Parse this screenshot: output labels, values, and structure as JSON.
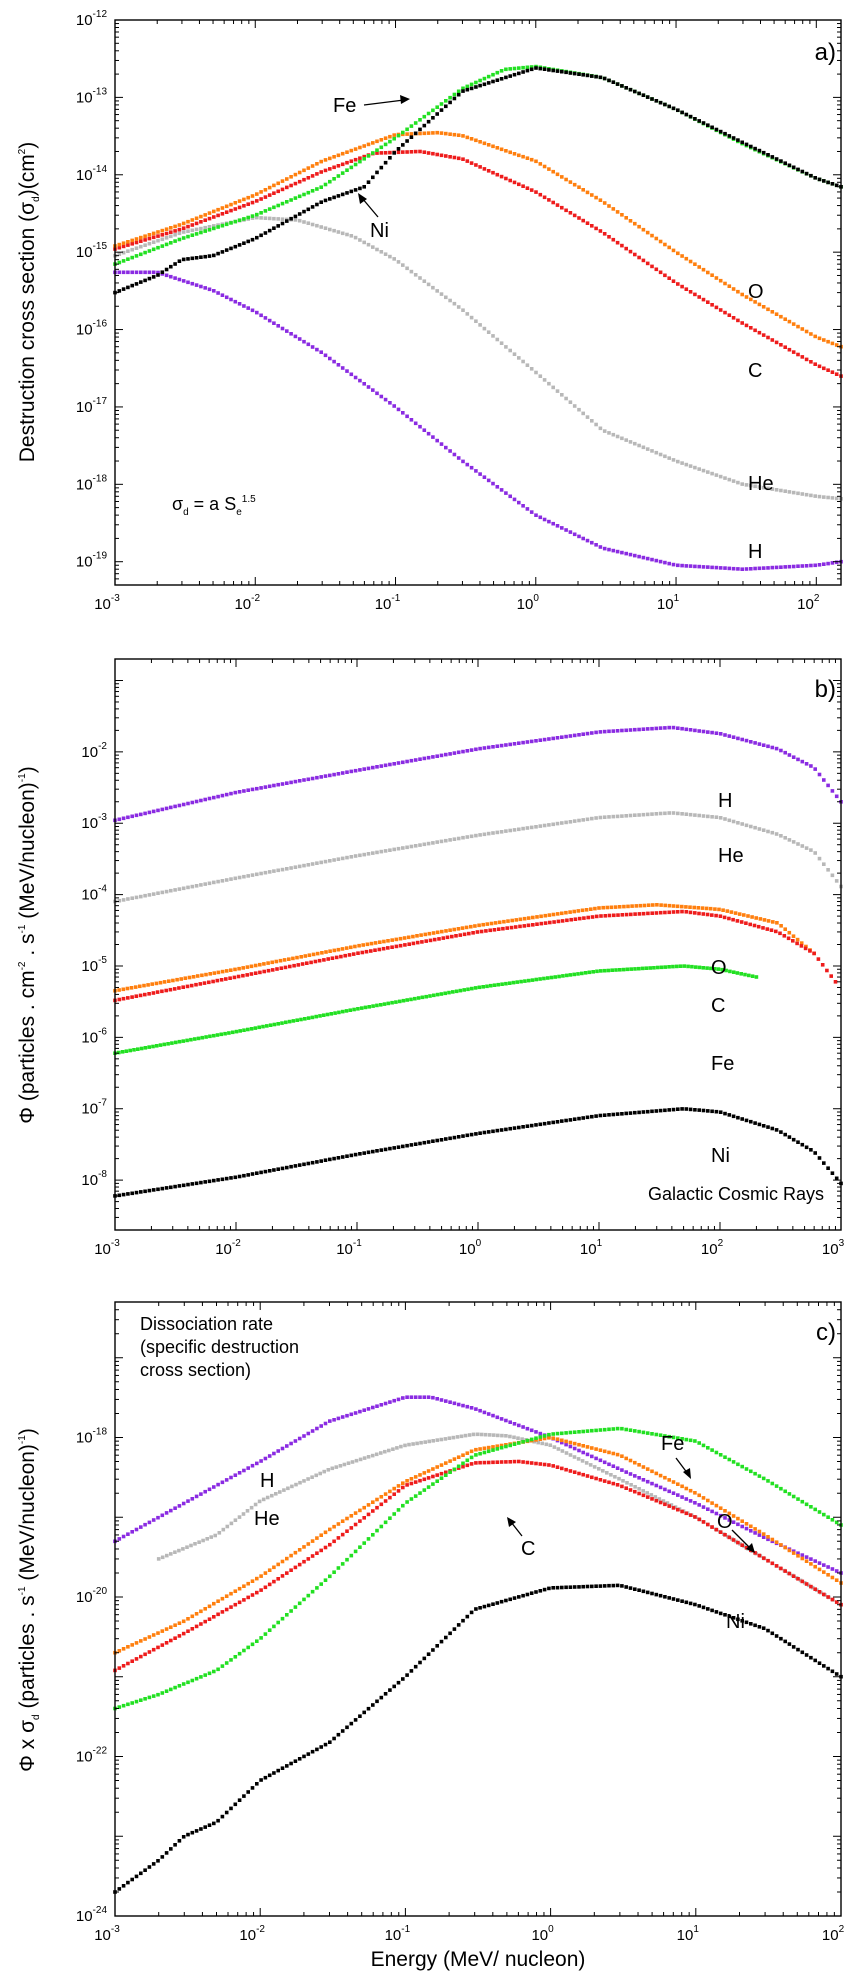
{
  "chart_data": [
    {
      "type": "scatter",
      "panel": "a)",
      "ylabel": "Destruction cross section (σd)(cm²)",
      "ylabel_parts": {
        "pre": "Destruction cross section (σ",
        "sub": "d",
        "mid": ")(cm",
        "sup": "2",
        "post": ")"
      },
      "xlim": [
        0.001,
        150
      ],
      "ylim": [
        5e-20,
        1e-12
      ],
      "x_ticks": [
        {
          "base": "10",
          "exp": "-3"
        },
        {
          "base": "10",
          "exp": "-2"
        },
        {
          "base": "10",
          "exp": "-1"
        },
        {
          "base": "10",
          "exp": "0"
        },
        {
          "base": "10",
          "exp": "1"
        },
        {
          "base": "10",
          "exp": "2"
        }
      ],
      "y_ticks": [
        {
          "base": "10",
          "exp": "-19"
        },
        {
          "base": "10",
          "exp": "-18"
        },
        {
          "base": "10",
          "exp": "-17"
        },
        {
          "base": "10",
          "exp": "-16"
        },
        {
          "base": "10",
          "exp": "-15"
        },
        {
          "base": "10",
          "exp": "-14"
        },
        {
          "base": "10",
          "exp": "-13"
        },
        {
          "base": "10",
          "exp": "-12"
        }
      ],
      "formula": {
        "sigma": "σ",
        "sub": "d",
        "eq": " = a S",
        "sub2": "e",
        "sup": "1.5"
      },
      "annotations": [
        "Fe",
        "Ni",
        "O",
        "C",
        "He",
        "H"
      ],
      "series": [
        {
          "name": "H",
          "color": "#8a2be2",
          "x": [
            0.001,
            0.002,
            0.005,
            0.01,
            0.03,
            0.1,
            0.3,
            1,
            3,
            10,
            30,
            100,
            150
          ],
          "y": [
            5.5e-16,
            5.5e-16,
            3.2e-16,
            1.7e-16,
            5e-17,
            1e-17,
            2e-18,
            4e-19,
            1.5e-19,
            9e-20,
            8e-20,
            9e-20,
            1e-19
          ]
        },
        {
          "name": "He",
          "color": "#b8b8b8",
          "x": [
            0.001,
            0.003,
            0.01,
            0.02,
            0.05,
            0.1,
            0.3,
            1,
            3,
            10,
            30,
            100,
            150
          ],
          "y": [
            9e-16,
            1.8e-15,
            2.8e-15,
            2.6e-15,
            1.6e-15,
            8e-16,
            1.8e-16,
            2.8e-17,
            5e-18,
            2e-18,
            1e-18,
            7e-19,
            6.5e-19
          ]
        },
        {
          "name": "C",
          "color": "#ee1c1c",
          "x": [
            0.001,
            0.003,
            0.01,
            0.03,
            0.07,
            0.15,
            0.3,
            1,
            3,
            10,
            30,
            100,
            150
          ],
          "y": [
            1.1e-15,
            2e-15,
            4.5e-15,
            1.1e-14,
            1.9e-14,
            2e-14,
            1.6e-14,
            6e-15,
            1.8e-15,
            4e-16,
            1.2e-16,
            3.5e-17,
            2.5e-17
          ]
        },
        {
          "name": "O",
          "color": "#ff7f0e",
          "x": [
            0.001,
            0.003,
            0.01,
            0.03,
            0.1,
            0.2,
            0.3,
            1,
            3,
            10,
            30,
            100,
            150
          ],
          "y": [
            1.2e-15,
            2.3e-15,
            5.5e-15,
            1.5e-14,
            3.3e-14,
            3.5e-14,
            3.2e-14,
            1.5e-14,
            4.5e-15,
            1e-15,
            2.8e-16,
            8e-17,
            6e-17
          ]
        },
        {
          "name": "Fe",
          "color": "#22e022",
          "x": [
            0.001,
            0.003,
            0.01,
            0.03,
            0.1,
            0.3,
            0.6,
            1,
            3,
            10,
            30,
            100,
            150
          ],
          "y": [
            7e-16,
            1.5e-15,
            3e-15,
            7e-15,
            3e-14,
            1.3e-13,
            2.3e-13,
            2.5e-13,
            1.8e-13,
            7e-14,
            2.5e-14,
            9e-15,
            7e-15
          ]
        },
        {
          "name": "Ni",
          "color": "#000000",
          "x": [
            0.001,
            0.002,
            0.003,
            0.005,
            0.01,
            0.03,
            0.06,
            0.1,
            0.3,
            1,
            3,
            10,
            30,
            100,
            150
          ],
          "y": [
            3e-16,
            5e-16,
            8e-16,
            9e-16,
            1.5e-15,
            4.5e-15,
            7e-15,
            2e-14,
            1.2e-13,
            2.4e-13,
            1.8e-13,
            7e-14,
            2.6e-14,
            9e-15,
            7e-15
          ]
        }
      ]
    },
    {
      "type": "scatter",
      "panel": "b)",
      "ylabel_parts": {
        "pre": "Φ (particles . cm",
        "sup1": "-2",
        "mid": " . s",
        "sup2": "-1",
        "post": " (MeV/nucleon)",
        "sup3": "-1",
        "end": ")"
      },
      "xlim": [
        0.001,
        1000
      ],
      "ylim": [
        2e-09,
        0.2
      ],
      "x_ticks": [
        {
          "base": "10",
          "exp": "-3"
        },
        {
          "base": "10",
          "exp": "-2"
        },
        {
          "base": "10",
          "exp": "-1"
        },
        {
          "base": "10",
          "exp": "0"
        },
        {
          "base": "10",
          "exp": "1"
        },
        {
          "base": "10",
          "exp": "2"
        },
        {
          "base": "10",
          "exp": "3"
        }
      ],
      "y_ticks": [
        {
          "base": "10",
          "exp": "-8"
        },
        {
          "base": "10",
          "exp": "-7"
        },
        {
          "base": "10",
          "exp": "-6"
        },
        {
          "base": "10",
          "exp": "-5"
        },
        {
          "base": "10",
          "exp": "-4"
        },
        {
          "base": "10",
          "exp": "-3"
        },
        {
          "base": "10",
          "exp": "-2"
        }
      ],
      "note": "Galactic Cosmic Rays",
      "annotations": [
        "H",
        "He",
        "O",
        "C",
        "Fe",
        "Ni"
      ],
      "series": [
        {
          "name": "H",
          "color": "#8a2be2",
          "x": [
            0.001,
            0.01,
            0.1,
            1,
            10,
            40,
            100,
            300,
            600,
            1000
          ],
          "y": [
            0.0011,
            0.0027,
            0.0055,
            0.011,
            0.019,
            0.022,
            0.018,
            0.011,
            0.006,
            0.002
          ]
        },
        {
          "name": "He",
          "color": "#b8b8b8",
          "x": [
            0.001,
            0.01,
            0.1,
            1,
            10,
            40,
            100,
            300,
            600,
            1000
          ],
          "y": [
            8e-05,
            0.00017,
            0.00035,
            0.00068,
            0.0012,
            0.0014,
            0.0012,
            0.0007,
            0.0004,
            0.00013
          ]
        },
        {
          "name": "O",
          "color": "#ff7f0e",
          "x": [
            0.001,
            0.01,
            0.1,
            1,
            10,
            30,
            100,
            300,
            600
          ],
          "y": [
            4.5e-06,
            9e-06,
            1.9e-05,
            3.7e-05,
            6.5e-05,
            7.2e-05,
            6.2e-05,
            4e-05,
            1.5e-05
          ]
        },
        {
          "name": "C",
          "color": "#ee1c1c",
          "x": [
            0.001,
            0.01,
            0.1,
            1,
            10,
            50,
            100,
            300,
            600,
            900
          ],
          "y": [
            3.3e-06,
            7e-06,
            1.5e-05,
            3e-05,
            5e-05,
            5.8e-05,
            5e-05,
            3e-05,
            1.5e-05,
            6e-06
          ]
        },
        {
          "name": "Fe",
          "color": "#22e022",
          "x": [
            0.001,
            0.01,
            0.1,
            1,
            10,
            50,
            100,
            200
          ],
          "y": [
            6e-07,
            1.2e-06,
            2.5e-06,
            5e-06,
            8.5e-06,
            1e-05,
            9e-06,
            7e-06
          ]
        },
        {
          "name": "Ni",
          "color": "#000000",
          "x": [
            0.001,
            0.01,
            0.1,
            1,
            10,
            50,
            100,
            300,
            600,
            1000
          ],
          "y": [
            6e-09,
            1.1e-08,
            2.3e-08,
            4.5e-08,
            8e-08,
            1e-07,
            9e-08,
            5e-08,
            2.5e-08,
            9e-09
          ]
        }
      ]
    },
    {
      "type": "scatter",
      "panel": "c)",
      "xlabel": "Energy (MeV/ nucleon)",
      "ylabel_parts": {
        "pre": "Φ x σ",
        "sub": "d",
        "mid": " (particles . s",
        "sup": "-1",
        "post": " (MeV/nucleon)",
        "sup2": "-1",
        "end": ")"
      },
      "xlim": [
        0.001,
        100
      ],
      "ylim": [
        1e-24,
        5e-17
      ],
      "x_ticks": [
        {
          "base": "10",
          "exp": "-3"
        },
        {
          "base": "10",
          "exp": "-2"
        },
        {
          "base": "10",
          "exp": "-1"
        },
        {
          "base": "10",
          "exp": "0"
        },
        {
          "base": "10",
          "exp": "1"
        },
        {
          "base": "10",
          "exp": "2"
        }
      ],
      "y_ticks": [
        {
          "base": "10",
          "exp": "-24"
        },
        {
          "base": "10",
          "exp": "-22"
        },
        {
          "base": "10",
          "exp": "-20"
        },
        {
          "base": "10",
          "exp": "-18"
        }
      ],
      "note_lines": [
        "Dissociation rate",
        "(specific destruction",
        "cross section)"
      ],
      "annotations": [
        "Fe",
        "H",
        "He",
        "O",
        "C",
        "Ni"
      ],
      "series": [
        {
          "name": "H",
          "color": "#8a2be2",
          "x": [
            0.001,
            0.003,
            0.01,
            0.03,
            0.1,
            0.15,
            0.3,
            1,
            3,
            10,
            30,
            100
          ],
          "y": [
            5e-20,
            1.5e-19,
            5e-19,
            1.6e-18,
            3.2e-18,
            3.2e-18,
            2.3e-18,
            1e-18,
            4e-19,
            1.5e-19,
            5.5e-20,
            2e-20
          ]
        },
        {
          "name": "He",
          "color": "#b8b8b8",
          "x": [
            0.002,
            0.005,
            0.01,
            0.03,
            0.1,
            0.3,
            0.5,
            1,
            3,
            10,
            30,
            100
          ],
          "y": [
            3e-20,
            6e-20,
            1.6e-19,
            4e-19,
            8e-19,
            1.1e-18,
            1.05e-18,
            8e-19,
            3e-19,
            1e-19,
            3e-20,
            8e-21
          ]
        },
        {
          "name": "O",
          "color": "#ff7f0e",
          "x": [
            0.001,
            0.003,
            0.01,
            0.03,
            0.1,
            0.3,
            1,
            3,
            10,
            30,
            100
          ],
          "y": [
            2e-21,
            5e-21,
            1.8e-20,
            7e-20,
            2.8e-19,
            7e-19,
            1e-18,
            6e-19,
            2e-19,
            6e-20,
            1.5e-20
          ]
        },
        {
          "name": "C",
          "color": "#ee1c1c",
          "x": [
            0.001,
            0.003,
            0.01,
            0.03,
            0.1,
            0.3,
            0.6,
            1,
            3,
            10,
            30,
            100
          ],
          "y": [
            1.2e-21,
            3.5e-21,
            1.2e-20,
            4.5e-20,
            2.5e-19,
            4.8e-19,
            5e-19,
            4.5e-19,
            2.5e-19,
            1e-19,
            3e-20,
            8e-21
          ]
        },
        {
          "name": "Fe",
          "color": "#22e022",
          "x": [
            0.001,
            0.002,
            0.005,
            0.01,
            0.03,
            0.1,
            0.3,
            1,
            3,
            10,
            30,
            100
          ],
          "y": [
            4e-22,
            6e-22,
            1.2e-21,
            3e-21,
            1.8e-20,
            1.5e-19,
            6e-19,
            1.1e-18,
            1.3e-18,
            9e-19,
            3e-19,
            8e-20
          ]
        },
        {
          "name": "Ni",
          "color": "#000000",
          "x": [
            0.001,
            0.002,
            0.003,
            0.005,
            0.01,
            0.03,
            0.1,
            0.3,
            1,
            3,
            10,
            30,
            100
          ],
          "y": [
            2e-24,
            5e-24,
            1e-23,
            1.5e-23,
            5e-23,
            1.5e-22,
            1e-21,
            7e-21,
            1.3e-20,
            1.4e-20,
            8e-21,
            4e-21,
            1e-21
          ]
        }
      ]
    }
  ]
}
